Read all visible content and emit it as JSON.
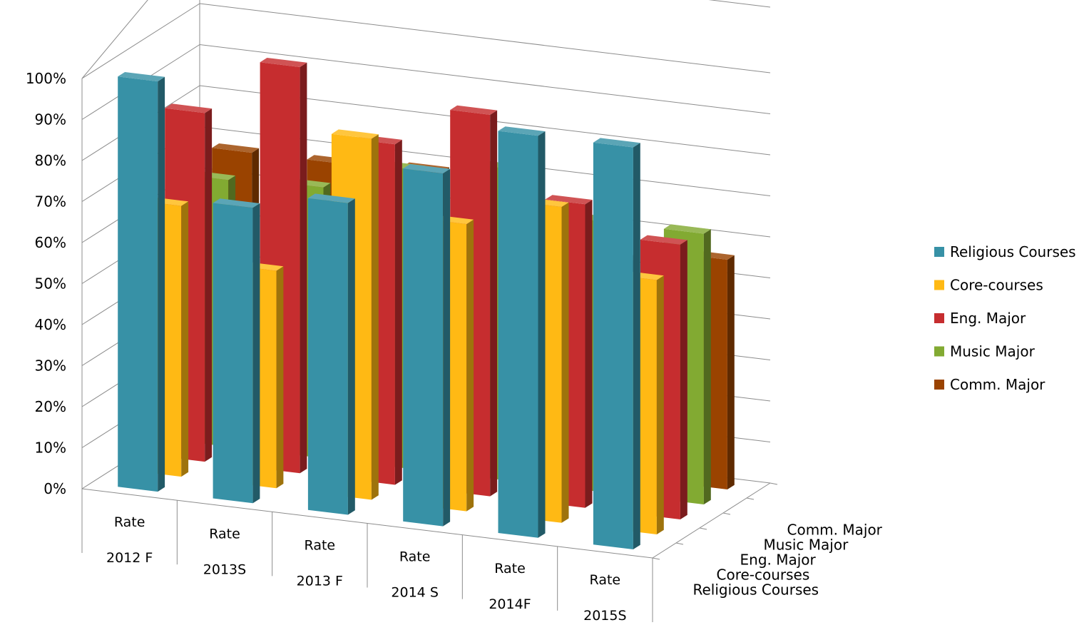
{
  "chart_data": {
    "type": "bar",
    "variant": "3d-column",
    "title": "",
    "xlabel": "",
    "ylabel": "",
    "ylim": [
      0,
      100
    ],
    "y_tick_labels": [
      "0%",
      "10%",
      "20%",
      "30%",
      "40%",
      "50%",
      "60%",
      "70%",
      "80%",
      "90%",
      "100%"
    ],
    "categories": [
      {
        "line1": "Rate",
        "line2": "2012 F"
      },
      {
        "line1": "Rate",
        "line2": "2013S"
      },
      {
        "line1": "Rate",
        "line2": "2013 F"
      },
      {
        "line1": "Rate",
        "line2": "2014 S"
      },
      {
        "line1": "Rate",
        "line2": "2014F"
      },
      {
        "line1": "Rate",
        "line2": "2015S"
      }
    ],
    "depth_labels": [
      "Religious Courses",
      "Core-courses",
      "Eng. Major",
      "Music Major",
      "Comm. Major"
    ],
    "legend_position": "right",
    "grid": true,
    "series": [
      {
        "name": "Religious Courses",
        "color": "#3791A6",
        "values": [
          100,
          72,
          76,
          86,
          98,
          98
        ]
      },
      {
        "name": "Core-courses",
        "color": "#FFB914",
        "values": [
          66,
          53,
          88,
          70,
          77,
          62
        ]
      },
      {
        "name": "Eng. Major",
        "color": "#C62D2F",
        "values": [
          85,
          99,
          83,
          93,
          74,
          67
        ]
      },
      {
        "name": "Music Major",
        "color": "#82AA32",
        "values": [
          65,
          66,
          73,
          76,
          66,
          66
        ]
      },
      {
        "name": "Comm. Major",
        "color": "#9A4300",
        "values": [
          68,
          68,
          69,
          72,
          53,
          56
        ]
      }
    ]
  }
}
